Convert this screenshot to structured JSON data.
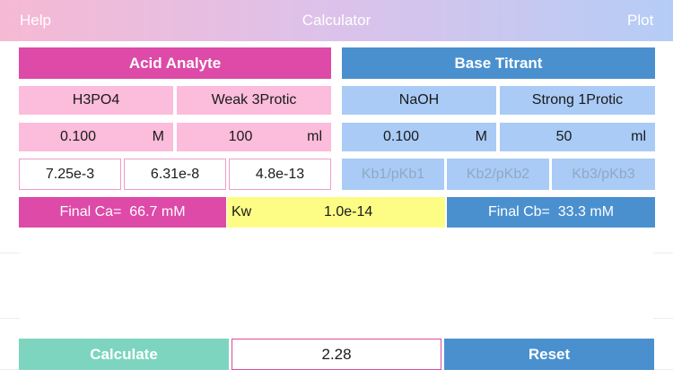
{
  "header": {
    "help": "Help",
    "title": "Calculator",
    "plot": "Plot"
  },
  "acid": {
    "heading": "Acid Analyte",
    "species": "H3PO4",
    "type": "Weak 3Protic",
    "conc_value": "0.100",
    "conc_unit": "M",
    "vol_value": "100",
    "vol_unit": "ml",
    "ka1": "7.25e-3",
    "ka2": "6.31e-8",
    "ka3": "4.8e-13",
    "final_label": "Final Ca=",
    "final_value": "66.7 mM"
  },
  "base": {
    "heading": "Base Titrant",
    "species": "NaOH",
    "type": "Strong 1Protic",
    "conc_value": "0.100",
    "conc_unit": "M",
    "vol_value": "50",
    "vol_unit": "ml",
    "kb1_placeholder": "Kb1/pKb1",
    "kb2_placeholder": "Kb2/pKb2",
    "kb3_placeholder": "Kb3/pKb3",
    "final_label": "Final Cb=",
    "final_value": "33.3 mM"
  },
  "kw": {
    "label": "Kw",
    "value": "1.0e-14"
  },
  "bottom": {
    "calculate": "Calculate",
    "result": "2.28",
    "reset": "Reset"
  },
  "colors": {
    "pink_accent": "#dd4aa8",
    "blue_accent": "#4a90cf",
    "green_button": "#7dd5bf",
    "kw_yellow": "#fdfd85"
  }
}
